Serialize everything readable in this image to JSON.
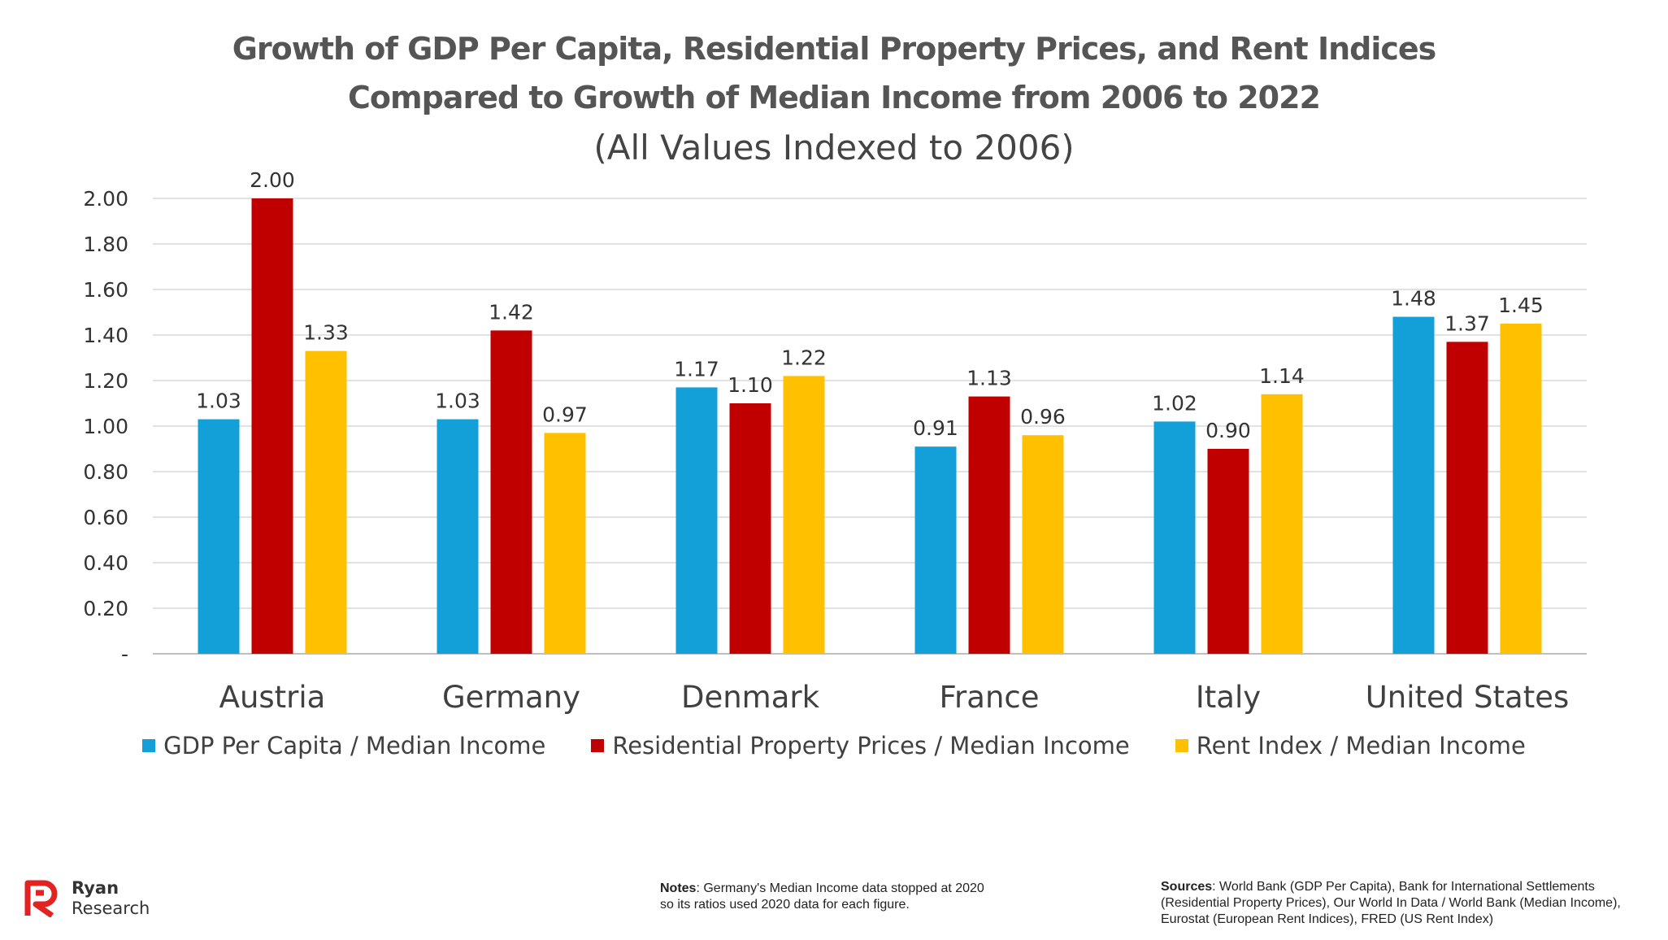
{
  "chart_data": {
    "type": "bar",
    "title_line1": "Growth of GDP Per Capita, Residential Property Prices, and Rent Indices",
    "title_line2": "Compared to Growth of Median Income from 2006 to 2022",
    "subtitle": "(All Values Indexed to 2006)",
    "categories": [
      "Austria",
      "Germany",
      "Denmark",
      "France",
      "Italy",
      "United States"
    ],
    "series": [
      {
        "name": "GDP Per Capita / Median Income",
        "color": "#139FD8",
        "values": [
          1.03,
          1.03,
          1.17,
          0.91,
          1.02,
          1.48
        ],
        "labels": [
          "1.03",
          "1.03",
          "1.17",
          "0.91",
          "1.02",
          "1.48"
        ]
      },
      {
        "name": "Residential Property Prices / Median Income",
        "color": "#C00000",
        "values": [
          2.0,
          1.42,
          1.1,
          1.13,
          0.9,
          1.37
        ],
        "labels": [
          "2.00",
          "1.42",
          "1.10",
          "1.13",
          "0.90",
          "1.37"
        ]
      },
      {
        "name": "Rent Index /  Median Income",
        "color": "#FFC000",
        "values": [
          1.33,
          0.97,
          1.22,
          0.96,
          1.14,
          1.45
        ],
        "labels": [
          "1.33",
          "0.97",
          "1.22",
          "0.96",
          "1.14",
          "1.45"
        ]
      }
    ],
    "ylim": [
      0,
      2.0
    ],
    "yticks": [
      "-",
      "0.20",
      "0.40",
      "0.60",
      "0.80",
      "1.00",
      "1.20",
      "1.40",
      "1.60",
      "1.80",
      "2.00"
    ],
    "grid": true,
    "legend_position": "bottom"
  },
  "footer": {
    "logo_line1": "Ryan",
    "logo_line2": "Research",
    "logo_color": "#E32222",
    "notes_label": "Notes",
    "notes_line1": ": Germany's Median Income data stopped at 2020",
    "notes_line2": "so its ratios used 2020 data for each figure.",
    "sources_label": "Sources",
    "sources_line1": ": World Bank (GDP Per Capita), Bank for International Settlements",
    "sources_line2": "(Residential Property Prices), Our World In Data / World Bank (Median Income),",
    "sources_line3": "Eurostat (European Rent Indices), FRED (US Rent Index)"
  }
}
